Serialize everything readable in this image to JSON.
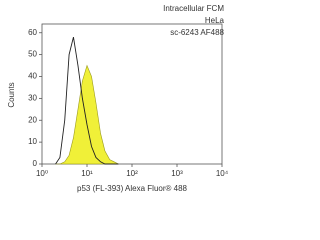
{
  "chart_data": {
    "type": "histogram-overlay",
    "annotations": [
      "Intracellular FCM",
      "HeLa",
      "sc-6243 AF488"
    ],
    "xlabel": "p53 (FL-393) Alexa Fluor® 488",
    "ylabel": "Counts",
    "xscale": "log",
    "xlim": [
      1,
      10000
    ],
    "xticks": [
      {
        "value": 1,
        "label": "10⁰"
      },
      {
        "value": 10,
        "label": "10¹"
      },
      {
        "value": 100,
        "label": "10²"
      },
      {
        "value": 1000,
        "label": "10³"
      },
      {
        "value": 10000,
        "label": "10⁴"
      }
    ],
    "ylim": [
      0,
      64
    ],
    "yticks": [
      0,
      10,
      20,
      30,
      40,
      50,
      60
    ],
    "x": [
      2,
      2.5,
      3.2,
      4,
      5,
      6.3,
      7.9,
      10,
      12.6,
      15.8,
      20,
      25,
      32,
      40,
      50
    ],
    "series": [
      {
        "color": "#222222",
        "filled": false,
        "values": [
          0,
          3,
          20,
          50,
          58,
          45,
          30,
          18,
          8,
          3,
          1,
          0,
          0,
          0,
          0
        ]
      },
      {
        "color": "#eeee22",
        "filled": true,
        "values": [
          0,
          0,
          1,
          4,
          12,
          25,
          38,
          45,
          40,
          28,
          14,
          6,
          2,
          1,
          0
        ]
      }
    ]
  }
}
